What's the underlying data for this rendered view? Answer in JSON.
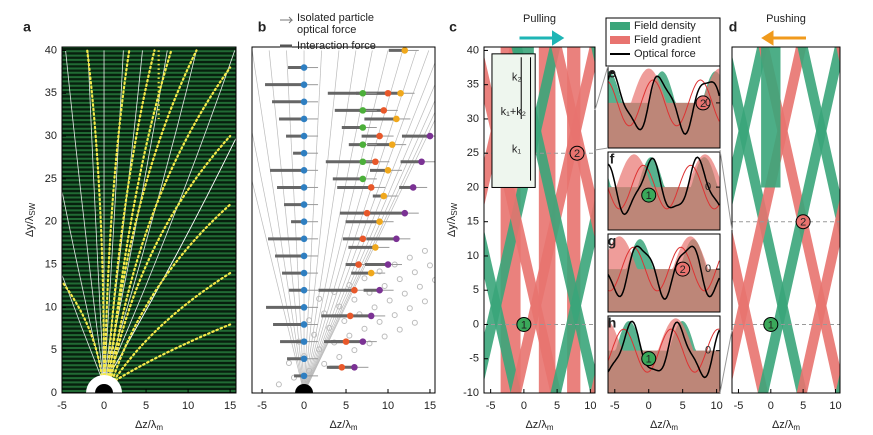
{
  "chart_data": [
    {
      "type": "map",
      "panel": "a",
      "xlabel": "Δz/λ",
      "xlabel_sub": "m",
      "ylabel": "Δy/λ",
      "ylabel_sub": "SW",
      "xlim": [
        -5,
        15.7
      ],
      "ylim": [
        0,
        40.4
      ],
      "xticks": [
        -5,
        0,
        5,
        10,
        15
      ],
      "yticks": [
        0,
        5,
        10,
        15,
        20,
        25,
        30,
        35,
        40
      ]
    },
    {
      "type": "scatter",
      "panel": "b",
      "xlabel": "Δz/λ",
      "xlabel_sub": "m",
      "xlim": [
        -6.2,
        15.6
      ],
      "ylim": [
        0,
        40.4
      ],
      "xticks": [
        -5,
        0,
        5,
        10,
        15
      ],
      "legend": [
        [
          "Isolated particle",
          "optical force"
        ],
        [
          "Interaction force"
        ]
      ],
      "series": [
        {
          "color": "#2f7fc1",
          "x": [
            0,
            0,
            0,
            0,
            0,
            0,
            0,
            0,
            0,
            0,
            0,
            0,
            0,
            0,
            0,
            0,
            0,
            0,
            0
          ],
          "y": [
            2,
            4,
            6,
            8,
            10,
            12,
            14,
            16,
            18,
            20,
            22,
            24,
            26,
            28,
            30,
            32,
            34,
            36,
            38
          ]
        },
        {
          "color": "#e8582a",
          "x": [
            4.5,
            5,
            5.5,
            6,
            6.5,
            7,
            7.5,
            8,
            8.5,
            9,
            9.5,
            10
          ],
          "y": [
            3,
            6,
            9,
            12,
            15,
            18,
            21,
            24,
            27,
            30,
            33,
            35
          ]
        },
        {
          "color": "#f0a81c",
          "x": [
            8,
            8.5,
            9,
            9.5,
            10,
            10.5,
            11,
            11.5,
            12
          ],
          "y": [
            14,
            17,
            20,
            23,
            26,
            29,
            32,
            35,
            40
          ]
        },
        {
          "color": "#7b3294",
          "x": [
            6,
            7,
            8,
            9,
            10,
            11,
            12,
            13,
            14,
            15
          ],
          "y": [
            3,
            6,
            9,
            12,
            15,
            18,
            21,
            24,
            27,
            30
          ]
        },
        {
          "color": "#4caf3a",
          "x": [
            7,
            7,
            7,
            7,
            7,
            7
          ],
          "y": [
            25,
            27,
            29,
            31,
            33,
            35
          ]
        }
      ]
    },
    {
      "type": "map",
      "panel": "c",
      "xlabel": "Δz/λ",
      "xlabel_sub": "m",
      "ylabel": "Δy/λ",
      "ylabel_sub": "SW",
      "title": "Pulling",
      "xlim": [
        -6,
        10.7
      ],
      "ylim": [
        -10,
        40.5
      ],
      "xticks": [
        -5,
        0,
        5,
        10
      ],
      "yticks": [
        -10,
        -5,
        0,
        5,
        10,
        15,
        20,
        25,
        30,
        35,
        40
      ],
      "inset": [
        "k₂",
        "k₁+k₂",
        "k₁"
      ],
      "markers": [
        "1",
        "2"
      ],
      "legend": [
        "Field density",
        "Field gradient",
        "Optical force"
      ]
    },
    {
      "type": "line",
      "panel": "e",
      "xlim": [
        -6,
        10.5
      ],
      "y2ticks": [
        0
      ],
      "marker": "2"
    },
    {
      "type": "line",
      "panel": "f",
      "xlim": [
        -6,
        10.5
      ],
      "y2ticks": [
        0
      ],
      "marker": "1"
    },
    {
      "type": "line",
      "panel": "g",
      "xlim": [
        -6,
        10.5
      ],
      "y2ticks": [
        0
      ],
      "marker": "2"
    },
    {
      "type": "line",
      "panel": "h",
      "xlim": [
        -6,
        10.5
      ],
      "y2ticks": [
        0
      ],
      "marker": "1",
      "xlabel": "Δz/λ",
      "xlabel_sub": "m",
      "xticks": [
        -5,
        0,
        5,
        10
      ]
    },
    {
      "type": "map",
      "panel": "d",
      "xlabel": "Δz/λ",
      "xlabel_sub": "m",
      "title": "Pushing",
      "xlim": [
        -6,
        10.7
      ],
      "ylim": [
        -10,
        40.5
      ],
      "xticks": [
        -5,
        0,
        5,
        10
      ],
      "markers": [
        "1",
        "2"
      ]
    }
  ]
}
